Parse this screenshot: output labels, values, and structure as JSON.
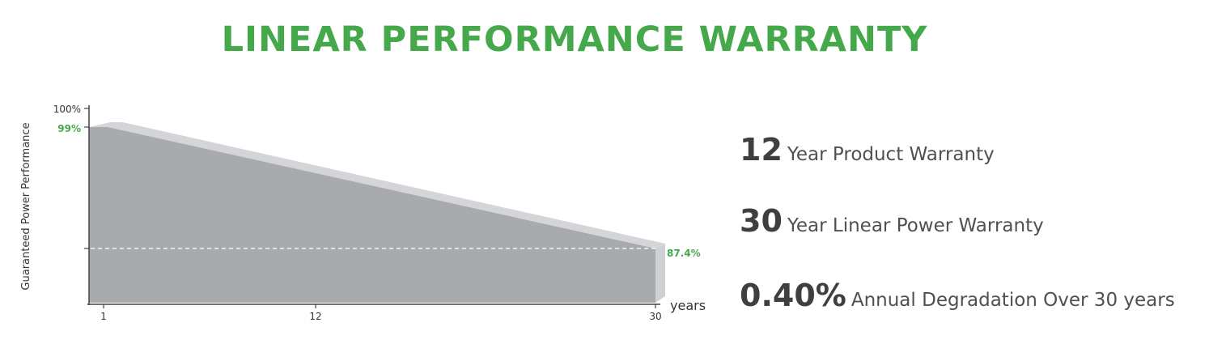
{
  "title": "LINEAR PERFORMANCE WARRANTY",
  "colors": {
    "accent": "#45a84a",
    "area": "#a8aaae",
    "area_top": "#d4d5d8",
    "area_side": "#cfd0d3",
    "text_dark": "#3f3f3f"
  },
  "chart_data": {
    "type": "area",
    "title": "",
    "xlabel": "years",
    "ylabel": "Guaranteed Power Performance",
    "x": [
      0,
      1,
      30
    ],
    "values": [
      99,
      99,
      87.4
    ],
    "xticks": [
      1,
      12,
      30
    ],
    "yticks": [
      100,
      99
    ],
    "ytick_labels": [
      "100%",
      "99%"
    ],
    "end_label": "87.4%",
    "reference_line": 87.4,
    "xlim": [
      0,
      30
    ],
    "ylim": [
      80,
      100
    ],
    "grid": false,
    "legend": "none"
  },
  "stats": [
    {
      "number": "12",
      "text": "Year Product Warranty"
    },
    {
      "number": "30",
      "text": "Year Linear Power Warranty"
    },
    {
      "number": "0.40%",
      "text": "Annual Degradation Over 30 years"
    }
  ]
}
